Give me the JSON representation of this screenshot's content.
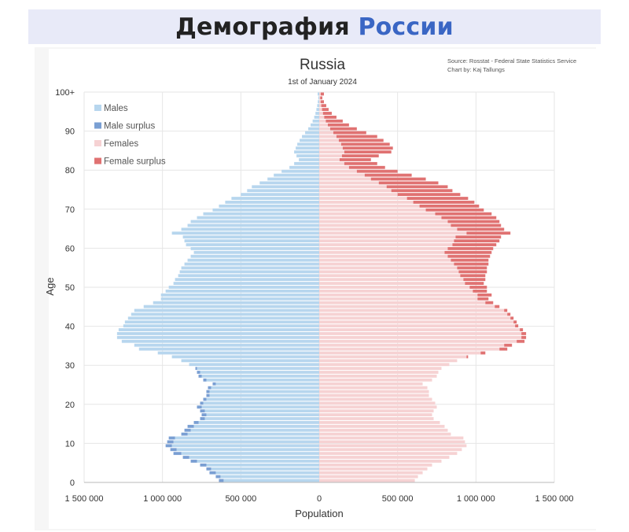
{
  "header": {
    "title_main": "Демография",
    "title_accent": "России"
  },
  "colors": {
    "males": "#b7d6ee",
    "male_surplus": "#7a9fd3",
    "females": "#f6d2d3",
    "female_surplus": "#e07272",
    "accent": "#3a66c4"
  },
  "chart_data": {
    "type": "bar",
    "orientation": "horizontal-population-pyramid",
    "title": "Russia",
    "subtitle": "1st of January 2024",
    "source_line1": "Source: Rosstat - Federal State Statistics Service",
    "source_line2": "Chart by: Kaj Tallungs",
    "xlabel": "Population",
    "ylabel": "Age",
    "xlim": [
      -1500000,
      1500000
    ],
    "ylim": [
      0,
      100
    ],
    "grid": true,
    "legend_position": "top-left",
    "x_ticks": [
      {
        "value": -1500000,
        "label": "1 500 000"
      },
      {
        "value": -1000000,
        "label": "1 000 000"
      },
      {
        "value": -500000,
        "label": "500 000"
      },
      {
        "value": 0,
        "label": "0"
      },
      {
        "value": 500000,
        "label": "500 000"
      },
      {
        "value": 1000000,
        "label": "1 000 000"
      },
      {
        "value": 1500000,
        "label": "1 500 000"
      }
    ],
    "y_ticks": [
      {
        "value": 0,
        "label": "0"
      },
      {
        "value": 10,
        "label": "10"
      },
      {
        "value": 20,
        "label": "20"
      },
      {
        "value": 30,
        "label": "30"
      },
      {
        "value": 40,
        "label": "40"
      },
      {
        "value": 50,
        "label": "50"
      },
      {
        "value": 60,
        "label": "60"
      },
      {
        "value": 70,
        "label": "70"
      },
      {
        "value": 80,
        "label": "80"
      },
      {
        "value": 90,
        "label": "90"
      },
      {
        "value": 100,
        "label": "100+"
      }
    ],
    "legend": [
      {
        "key": "males",
        "label": "Males"
      },
      {
        "key": "male_surplus",
        "label": "Male surplus"
      },
      {
        "key": "females",
        "label": "Females"
      },
      {
        "key": "female_surplus",
        "label": "Female surplus"
      }
    ],
    "ages": [
      0,
      1,
      2,
      3,
      4,
      5,
      6,
      7,
      8,
      9,
      10,
      11,
      12,
      13,
      14,
      15,
      16,
      17,
      18,
      19,
      20,
      21,
      22,
      23,
      24,
      25,
      26,
      27,
      28,
      29,
      30,
      31,
      32,
      33,
      34,
      35,
      36,
      37,
      38,
      39,
      40,
      41,
      42,
      43,
      44,
      45,
      46,
      47,
      48,
      49,
      50,
      51,
      52,
      53,
      54,
      55,
      56,
      57,
      58,
      59,
      60,
      61,
      62,
      63,
      64,
      65,
      66,
      67,
      68,
      69,
      70,
      71,
      72,
      73,
      74,
      75,
      76,
      77,
      78,
      79,
      80,
      81,
      82,
      83,
      84,
      85,
      86,
      87,
      88,
      89,
      90,
      91,
      92,
      93,
      94,
      95,
      96,
      97,
      98,
      99,
      100
    ],
    "series": [
      {
        "name": "Males",
        "values": [
          640000,
          660000,
          700000,
          720000,
          760000,
          820000,
          870000,
          930000,
          950000,
          980000,
          970000,
          960000,
          880000,
          860000,
          840000,
          800000,
          760000,
          750000,
          760000,
          780000,
          760000,
          740000,
          720000,
          720000,
          710000,
          680000,
          740000,
          770000,
          780000,
          790000,
          830000,
          880000,
          940000,
          1030000,
          1150000,
          1180000,
          1260000,
          1290000,
          1290000,
          1280000,
          1250000,
          1240000,
          1220000,
          1200000,
          1180000,
          1120000,
          1060000,
          1010000,
          1010000,
          980000,
          960000,
          930000,
          920000,
          900000,
          890000,
          880000,
          860000,
          840000,
          820000,
          800000,
          820000,
          850000,
          860000,
          870000,
          940000,
          880000,
          840000,
          820000,
          780000,
          740000,
          680000,
          640000,
          600000,
          560000,
          500000,
          460000,
          430000,
          380000,
          330000,
          290000,
          240000,
          190000,
          160000,
          130000,
          145000,
          160000,
          150000,
          140000,
          125000,
          110000,
          90000,
          70000,
          55000,
          42000,
          32000,
          24000,
          18000,
          13000,
          9000,
          6000,
          10000
        ]
      },
      {
        "name": "Females",
        "values": [
          610000,
          630000,
          660000,
          690000,
          720000,
          780000,
          830000,
          880000,
          910000,
          940000,
          930000,
          920000,
          840000,
          820000,
          800000,
          770000,
          730000,
          720000,
          730000,
          750000,
          740000,
          720000,
          700000,
          700000,
          690000,
          660000,
          720000,
          750000,
          760000,
          780000,
          830000,
          880000,
          950000,
          1060000,
          1200000,
          1230000,
          1310000,
          1320000,
          1320000,
          1300000,
          1270000,
          1260000,
          1240000,
          1220000,
          1200000,
          1150000,
          1110000,
          1080000,
          1100000,
          1070000,
          1070000,
          1050000,
          1060000,
          1060000,
          1070000,
          1070000,
          1080000,
          1080000,
          1090000,
          1100000,
          1110000,
          1130000,
          1150000,
          1160000,
          1220000,
          1180000,
          1160000,
          1150000,
          1130000,
          1100000,
          1050000,
          1020000,
          990000,
          950000,
          900000,
          850000,
          820000,
          760000,
          680000,
          590000,
          500000,
          420000,
          370000,
          330000,
          380000,
          460000,
          470000,
          450000,
          410000,
          370000,
          300000,
          240000,
          190000,
          150000,
          110000,
          80000,
          60000,
          45000,
          30000,
          20000,
          30000
        ]
      }
    ]
  }
}
